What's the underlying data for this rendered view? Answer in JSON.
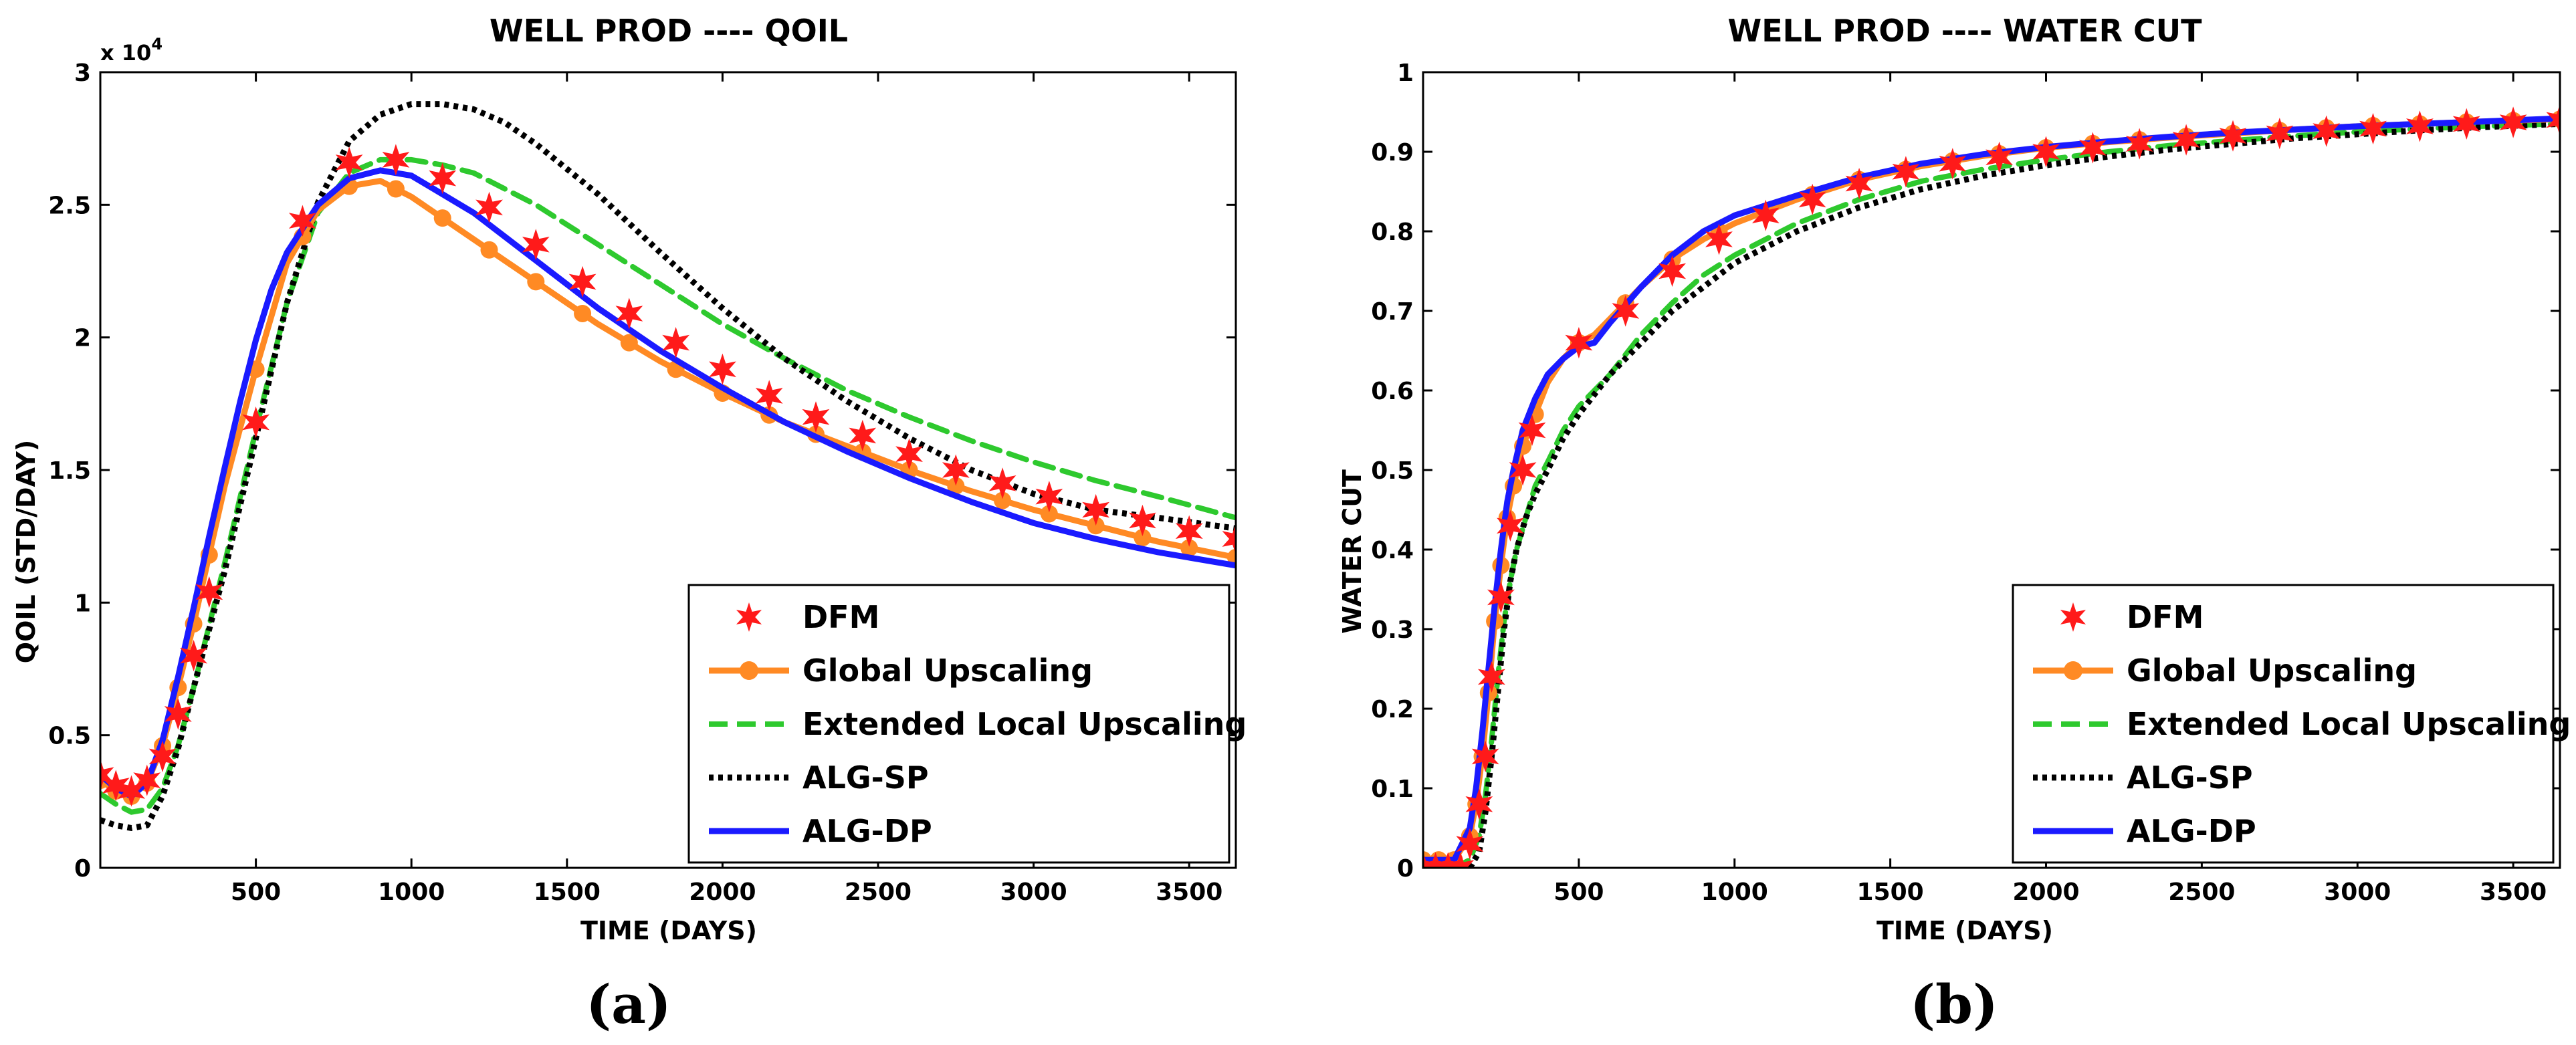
{
  "chart_data": [
    {
      "type": "line",
      "title": "WELL PROD ---- QOIL",
      "xlabel": "TIME (DAYS)",
      "ylabel": "QOIL (STD/DAY)",
      "scale_label": "x 10",
      "scale_exp": "4",
      "subfig_label": "(a)",
      "xlim": [
        0,
        3650
      ],
      "ylim": [
        0,
        30000
      ],
      "xticks": [
        500,
        1000,
        1500,
        2000,
        2500,
        3000,
        3500
      ],
      "yticks": [
        0,
        5000,
        10000,
        15000,
        20000,
        25000,
        30000
      ],
      "ytick_labels": [
        "0",
        "0.5",
        "1",
        "1.5",
        "2",
        "2.5",
        "3"
      ],
      "xtick_labels": [
        "500",
        "1000",
        "1500",
        "2000",
        "2500",
        "3000",
        "3500"
      ],
      "legend_position": "bottom-right",
      "series": [
        {
          "name": "DFM",
          "style": "marker-star",
          "color": "#ff1a1a",
          "x": [
            0,
            50,
            100,
            150,
            200,
            250,
            300,
            350,
            500,
            650,
            800,
            950,
            1100,
            1250,
            1400,
            1550,
            1700,
            1850,
            2000,
            2150,
            2300,
            2450,
            2600,
            2750,
            2900,
            3050,
            3200,
            3350,
            3500,
            3650
          ],
          "y": [
            3500,
            3100,
            2900,
            3300,
            4200,
            5800,
            8000,
            10400,
            16800,
            24400,
            26600,
            26700,
            26000,
            24900,
            23500,
            22100,
            20900,
            19800,
            18800,
            17800,
            17000,
            16300,
            15600,
            15000,
            14500,
            14000,
            13500,
            13100,
            12700,
            12400
          ]
        },
        {
          "name": "Global Upscaling",
          "style": "solid-dot",
          "color": "#ff8a24",
          "x": [
            0,
            50,
            100,
            150,
            200,
            250,
            300,
            350,
            400,
            500,
            600,
            700,
            800,
            900,
            1000,
            1200,
            1400,
            1600,
            1800,
            2000,
            2200,
            2400,
            2600,
            2800,
            3000,
            3200,
            3400,
            3650
          ],
          "y": [
            3300,
            2900,
            2700,
            3200,
            4600,
            6800,
            9200,
            11800,
            14400,
            18800,
            22800,
            24800,
            25700,
            25900,
            25300,
            23700,
            22100,
            20500,
            19100,
            17900,
            16800,
            15900,
            15000,
            14200,
            13500,
            12900,
            12300,
            11700
          ],
          "marker_x": [
            0,
            50,
            100,
            150,
            200,
            250,
            300,
            350,
            500,
            650,
            800,
            950,
            1100,
            1250,
            1400,
            1550,
            1700,
            1850,
            2000,
            2150,
            2300,
            2450,
            2600,
            2750,
            2900,
            3050,
            3200,
            3350,
            3500,
            3650
          ]
        },
        {
          "name": "Extended Local Upscaling",
          "style": "dashed",
          "color": "#2ec92e",
          "x": [
            0,
            50,
            100,
            150,
            200,
            250,
            300,
            400,
            500,
            600,
            700,
            800,
            900,
            1000,
            1100,
            1200,
            1400,
            1600,
            1800,
            2000,
            2200,
            2400,
            2600,
            2800,
            3000,
            3200,
            3400,
            3650
          ],
          "y": [
            2800,
            2400,
            2100,
            2200,
            3000,
            4600,
            6800,
            11500,
            16500,
            21300,
            24700,
            26200,
            26700,
            26700,
            26500,
            26200,
            25000,
            23500,
            22000,
            20500,
            19200,
            18000,
            17000,
            16100,
            15300,
            14600,
            14000,
            13200
          ]
        },
        {
          "name": "ALG-SP",
          "style": "dotted",
          "color": "#000000",
          "x": [
            0,
            50,
            100,
            150,
            200,
            250,
            300,
            400,
            500,
            600,
            700,
            800,
            900,
            1000,
            1100,
            1200,
            1300,
            1400,
            1600,
            1800,
            2000,
            2200,
            2400,
            2600,
            2800,
            3000,
            3200,
            3400,
            3650
          ],
          "y": [
            1800,
            1600,
            1500,
            1600,
            2700,
            4500,
            6800,
            11200,
            16200,
            21300,
            25100,
            27400,
            28400,
            28800,
            28800,
            28600,
            28100,
            27300,
            25400,
            23200,
            21100,
            19200,
            17600,
            16200,
            15000,
            14100,
            13500,
            13200,
            12800
          ]
        },
        {
          "name": "ALG-DP",
          "style": "solid",
          "color": "#1a1aff",
          "x": [
            0,
            50,
            100,
            150,
            200,
            250,
            300,
            350,
            400,
            450,
            500,
            550,
            600,
            700,
            800,
            900,
            1000,
            1200,
            1400,
            1600,
            1800,
            2000,
            2200,
            2400,
            2600,
            2800,
            3000,
            3200,
            3400,
            3650
          ],
          "y": [
            3500,
            3000,
            2700,
            3200,
            4800,
            7200,
            9800,
            12500,
            15100,
            17600,
            19900,
            21800,
            23200,
            25000,
            26000,
            26300,
            26100,
            24700,
            22900,
            21100,
            19500,
            18100,
            16800,
            15700,
            14700,
            13800,
            13000,
            12400,
            11900,
            11400
          ]
        }
      ]
    },
    {
      "type": "line",
      "title": "WELL PROD ---- WATER CUT",
      "xlabel": "TIME (DAYS)",
      "ylabel": "WATER CUT",
      "subfig_label": "(b)",
      "xlim": [
        0,
        3650
      ],
      "ylim": [
        0,
        1
      ],
      "xticks": [
        500,
        1000,
        1500,
        2000,
        2500,
        3000,
        3500
      ],
      "yticks": [
        0,
        0.1,
        0.2,
        0.3,
        0.4,
        0.5,
        0.6,
        0.7,
        0.8,
        0.9,
        1
      ],
      "ytick_labels": [
        "0",
        "0.1",
        "0.2",
        "0.3",
        "0.4",
        "0.5",
        "0.6",
        "0.7",
        "0.8",
        "0.9",
        "1"
      ],
      "xtick_labels": [
        "500",
        "1000",
        "1500",
        "2000",
        "2500",
        "3000",
        "3500"
      ],
      "legend_position": "bottom-right",
      "series": [
        {
          "name": "DFM",
          "style": "marker-star",
          "color": "#ff1a1a",
          "x": [
            0,
            40,
            80,
            120,
            150,
            180,
            200,
            220,
            250,
            280,
            320,
            350,
            500,
            650,
            800,
            950,
            1100,
            1250,
            1400,
            1550,
            1700,
            1850,
            2000,
            2150,
            2300,
            2450,
            2600,
            2750,
            2900,
            3050,
            3200,
            3350,
            3500,
            3650
          ],
          "y": [
            0.0,
            0.0,
            0.0,
            0.0,
            0.03,
            0.08,
            0.14,
            0.24,
            0.34,
            0.43,
            0.5,
            0.55,
            0.66,
            0.7,
            0.75,
            0.79,
            0.82,
            0.84,
            0.86,
            0.875,
            0.885,
            0.893,
            0.9,
            0.905,
            0.91,
            0.915,
            0.92,
            0.923,
            0.926,
            0.929,
            0.932,
            0.935,
            0.937,
            0.94
          ]
        },
        {
          "name": "Global Upscaling",
          "style": "solid-dot",
          "color": "#ff8a24",
          "x": [
            0,
            50,
            100,
            150,
            170,
            190,
            210,
            230,
            250,
            270,
            290,
            320,
            360,
            400,
            450,
            500,
            550,
            600,
            700,
            800,
            900,
            1000,
            1200,
            1400,
            1600,
            1800,
            2000,
            2200,
            2400,
            2600,
            2800,
            3000,
            3200,
            3400,
            3650
          ],
          "y": [
            0.01,
            0.01,
            0.01,
            0.04,
            0.08,
            0.14,
            0.22,
            0.31,
            0.38,
            0.44,
            0.48,
            0.53,
            0.57,
            0.61,
            0.64,
            0.66,
            0.67,
            0.69,
            0.73,
            0.765,
            0.79,
            0.81,
            0.84,
            0.865,
            0.882,
            0.895,
            0.905,
            0.912,
            0.918,
            0.923,
            0.928,
            0.932,
            0.935,
            0.938,
            0.941
          ],
          "marker_x": [
            0,
            50,
            100,
            150,
            170,
            190,
            210,
            230,
            250,
            270,
            290,
            320,
            360,
            500,
            650,
            800,
            950,
            1100,
            1250,
            1400,
            1550,
            1700,
            1850,
            2000,
            2150,
            2300,
            2450,
            2600,
            2750,
            2900,
            3050,
            3200,
            3350,
            3500,
            3650
          ]
        },
        {
          "name": "Extended Local Upscaling",
          "style": "dashed",
          "color": "#2ec92e",
          "x": [
            0,
            100,
            150,
            180,
            200,
            220,
            240,
            260,
            280,
            300,
            330,
            360,
            400,
            450,
            500,
            600,
            700,
            800,
            900,
            1000,
            1200,
            1400,
            1600,
            1800,
            2000,
            2200,
            2400,
            2600,
            2800,
            3000,
            3200,
            3400,
            3650
          ],
          "y": [
            0.0,
            0.0,
            0.01,
            0.04,
            0.09,
            0.16,
            0.24,
            0.31,
            0.36,
            0.4,
            0.44,
            0.48,
            0.51,
            0.55,
            0.58,
            0.62,
            0.67,
            0.71,
            0.745,
            0.77,
            0.81,
            0.84,
            0.863,
            0.878,
            0.89,
            0.9,
            0.908,
            0.914,
            0.92,
            0.925,
            0.929,
            0.932,
            0.935
          ]
        },
        {
          "name": "ALG-SP",
          "style": "dotted",
          "color": "#000000",
          "x": [
            0,
            100,
            150,
            180,
            200,
            220,
            240,
            260,
            280,
            300,
            330,
            360,
            400,
            450,
            500,
            600,
            700,
            800,
            900,
            1000,
            1200,
            1400,
            1600,
            1800,
            2000,
            2200,
            2400,
            2600,
            2800,
            3000,
            3200,
            3400,
            3650
          ],
          "y": [
            0.0,
            0.0,
            0.0,
            0.02,
            0.07,
            0.14,
            0.22,
            0.3,
            0.36,
            0.4,
            0.44,
            0.47,
            0.5,
            0.54,
            0.57,
            0.62,
            0.66,
            0.7,
            0.73,
            0.76,
            0.8,
            0.83,
            0.853,
            0.87,
            0.883,
            0.894,
            0.903,
            0.91,
            0.917,
            0.922,
            0.927,
            0.931,
            0.935
          ]
        },
        {
          "name": "ALG-DP",
          "style": "solid",
          "color": "#1a1aff",
          "x": [
            0,
            50,
            100,
            150,
            170,
            190,
            210,
            230,
            250,
            270,
            290,
            320,
            360,
            400,
            450,
            500,
            550,
            600,
            700,
            800,
            900,
            1000,
            1200,
            1400,
            1600,
            1800,
            2000,
            2200,
            2400,
            2600,
            2800,
            3000,
            3200,
            3400,
            3650
          ],
          "y": [
            0.01,
            0.01,
            0.01,
            0.05,
            0.1,
            0.17,
            0.25,
            0.33,
            0.4,
            0.46,
            0.5,
            0.55,
            0.59,
            0.62,
            0.64,
            0.655,
            0.66,
            0.685,
            0.73,
            0.77,
            0.8,
            0.82,
            0.845,
            0.868,
            0.885,
            0.897,
            0.906,
            0.913,
            0.919,
            0.924,
            0.928,
            0.932,
            0.935,
            0.938,
            0.942
          ]
        }
      ]
    }
  ]
}
